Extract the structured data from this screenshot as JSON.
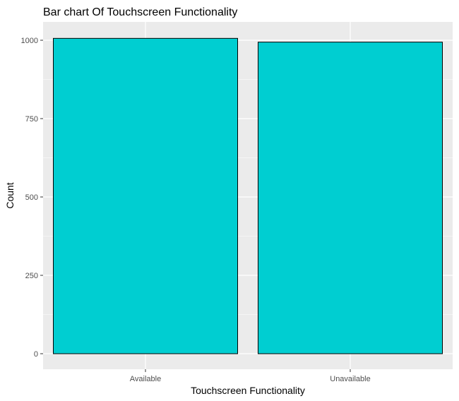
{
  "chart_data": {
    "type": "bar",
    "title": "Bar chart Of Touchscreen Functionality",
    "xlabel": "Touchscreen Functionality",
    "ylabel": "Count",
    "categories": [
      "Available",
      "Unavailable"
    ],
    "values": [
      1006,
      994
    ],
    "ylim": [
      0,
      1070
    ],
    "yticks": [
      0,
      250,
      500,
      750,
      1000
    ],
    "grid": true,
    "legend": "none",
    "bar_fill": "#00CED1",
    "bar_stroke": "#000000",
    "panel_background": "#EBEBEB",
    "grid_color": "#FFFFFF"
  }
}
